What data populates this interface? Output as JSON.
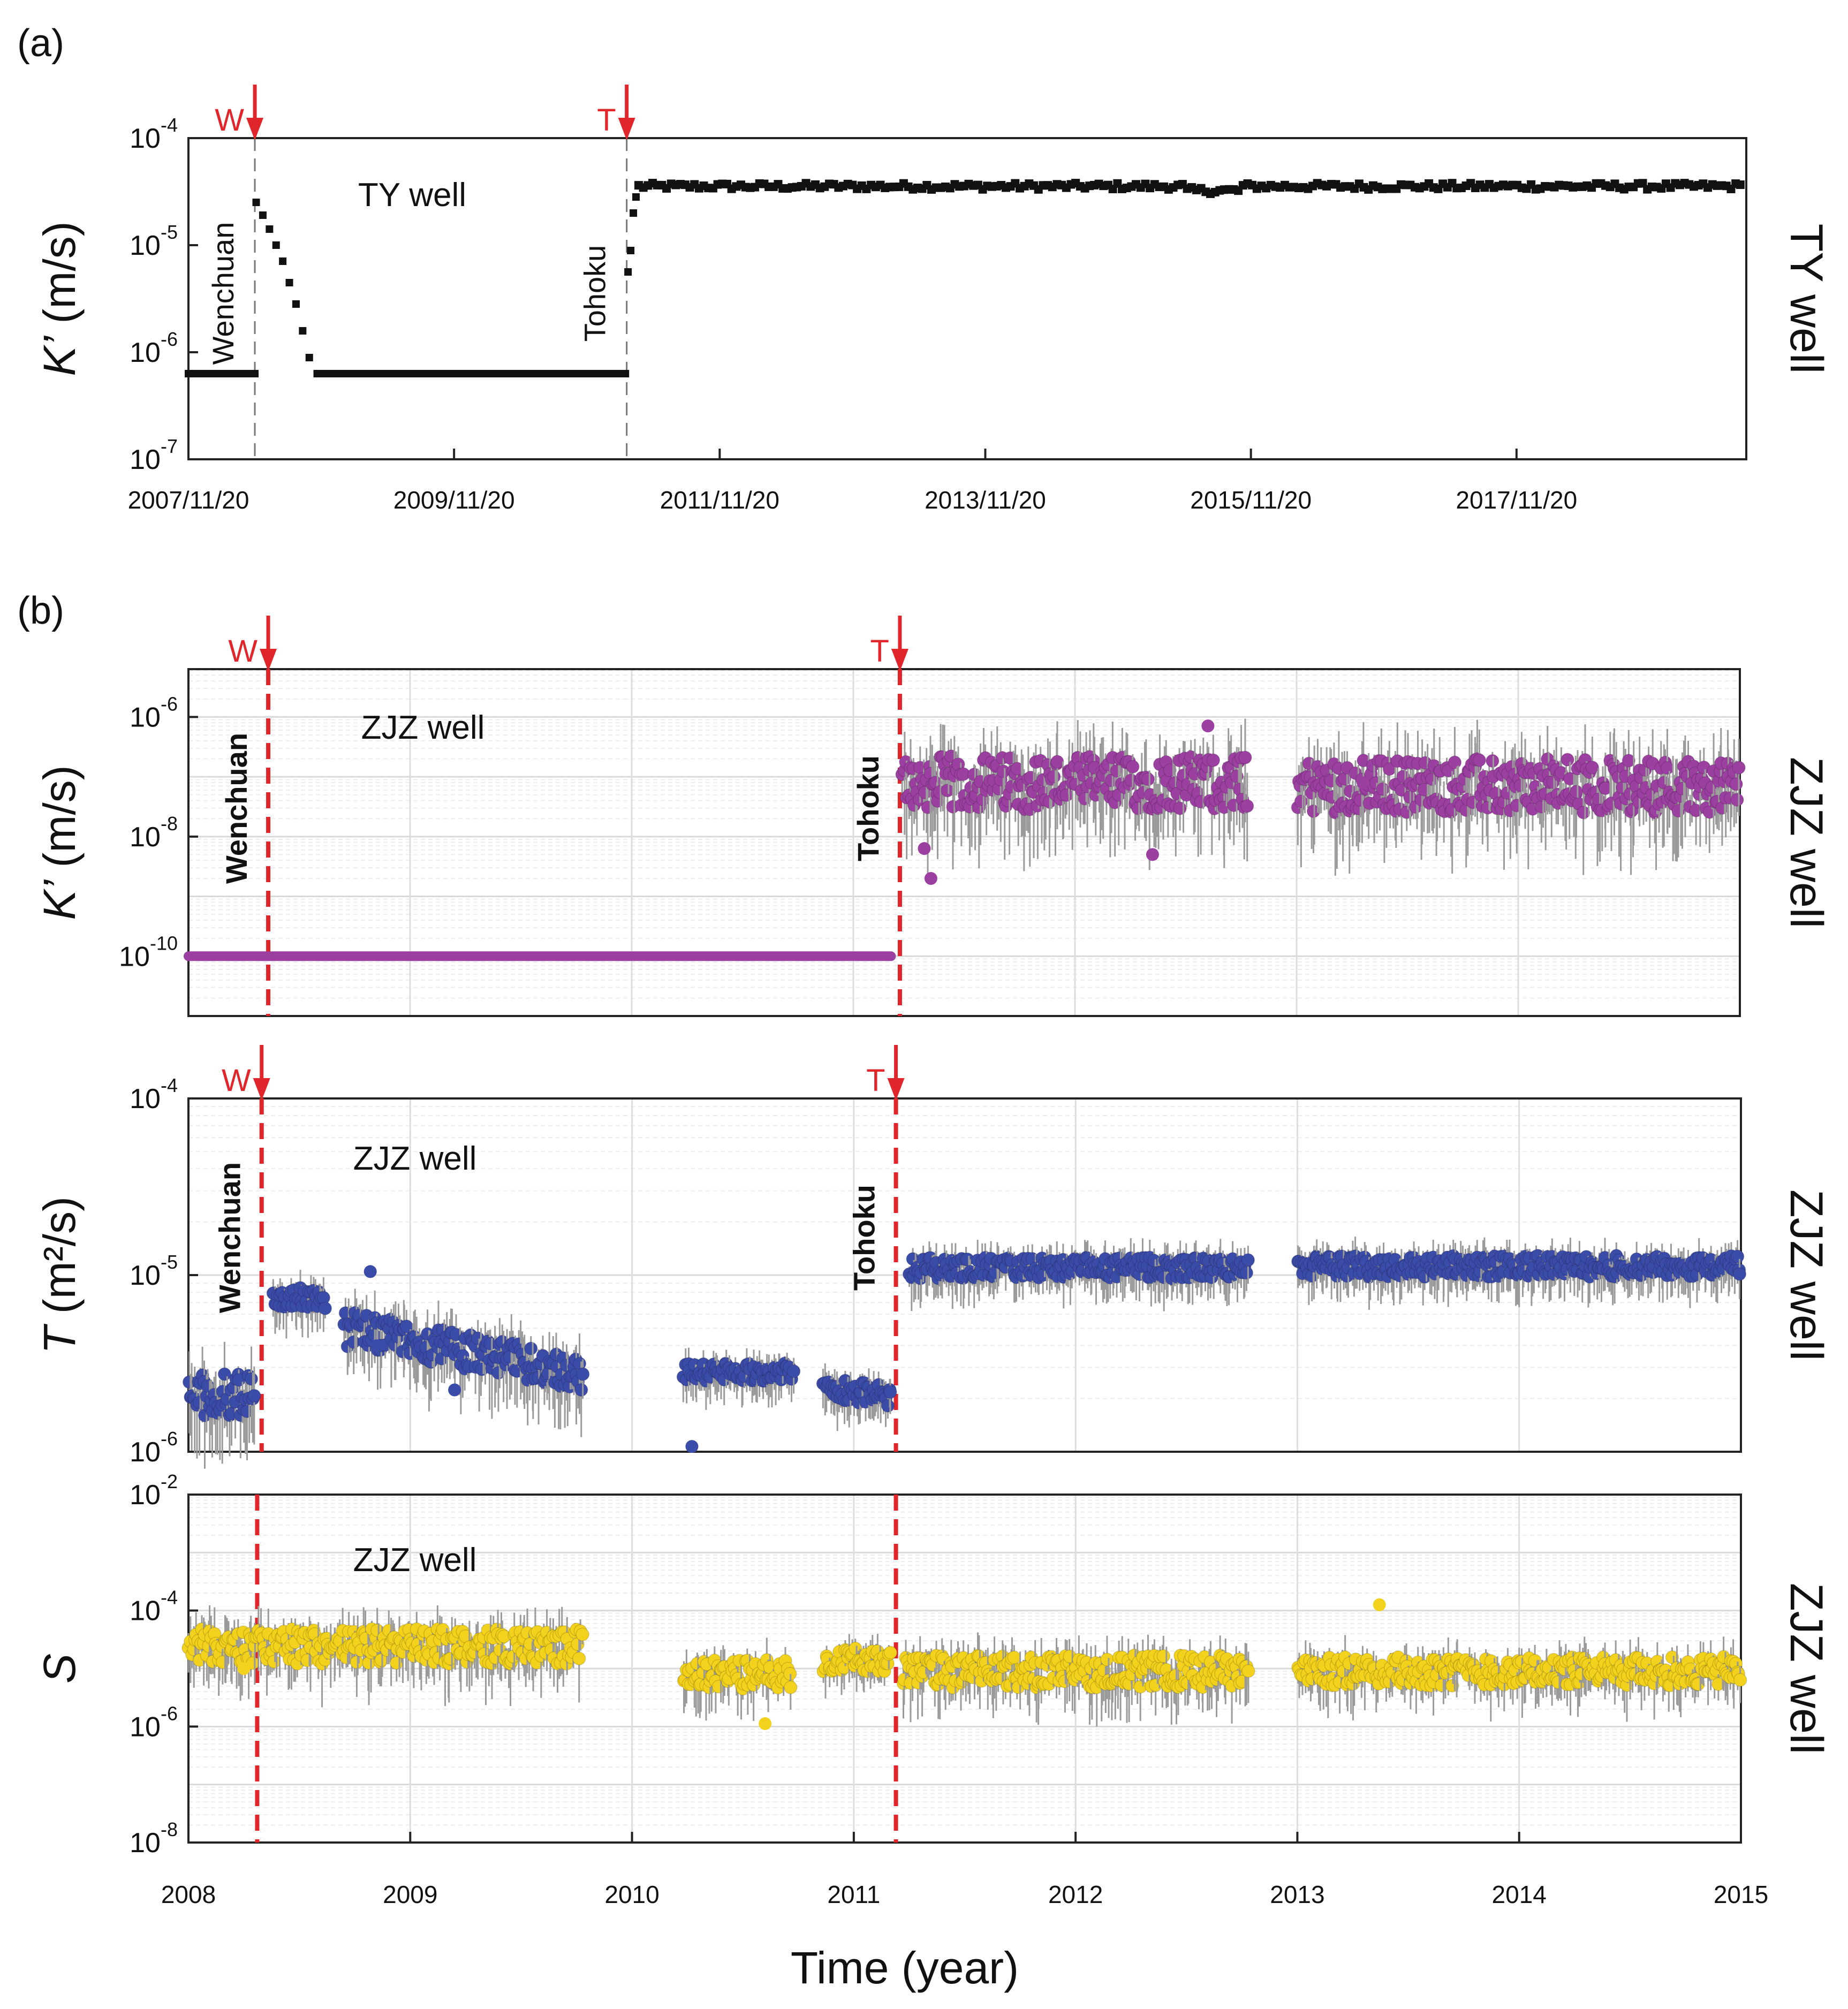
{
  "panel_a_label": "(a)",
  "panel_b_label": "(b)",
  "x_axis_title": "Time (year)",
  "colors": {
    "eq": "#e0262b",
    "ty": "#111111",
    "kzjz": "#9b3fa0",
    "t": "#3b4ba8",
    "s": "#f2d21c",
    "err": "#9a9a9a"
  },
  "chart_data": [
    {
      "id": "a",
      "type": "scatter",
      "title": "TY well",
      "side_label": "TY well",
      "ylabel_main": "K’",
      "ylabel_unit": " (m/s)",
      "yscale": "log",
      "ylim": [
        -7,
        -4
      ],
      "y_ticks": [
        {
          "base": "10",
          "exp": "-7",
          "v": -7
        },
        {
          "base": "10",
          "exp": "-6",
          "v": -6
        },
        {
          "base": "10",
          "exp": "-5",
          "v": -5
        },
        {
          "base": "10",
          "exp": "-4",
          "v": -4
        }
      ],
      "xlim": [
        2007.89,
        2019.62
      ],
      "x_ticks": [
        {
          "label": "2007/11/20",
          "v": 2007.89
        },
        {
          "label": "2009/11/20",
          "v": 2009.89
        },
        {
          "label": "2011/11/20",
          "v": 2011.89
        },
        {
          "label": "2013/11/20",
          "v": 2013.89
        },
        {
          "label": "2015/11/20",
          "v": 2015.89
        },
        {
          "label": "2017/11/20",
          "v": 2017.89
        }
      ],
      "events": [
        {
          "flag": "W",
          "name": "Wenchuan",
          "x": 2008.39
        },
        {
          "flag": "T",
          "name": "Tohoku",
          "x": 2011.19
        }
      ],
      "baseline_log": -6.2,
      "segments": [
        {
          "from": 2007.89,
          "to": 2008.39,
          "logk": -6.2
        },
        {
          "from": 2008.86,
          "to": 2011.19,
          "logk": -6.2
        }
      ],
      "decay": [
        [
          2008.4,
          -4.6
        ],
        [
          2008.45,
          -4.72
        ],
        [
          2008.5,
          -4.85
        ],
        [
          2008.55,
          -5.0
        ],
        [
          2008.6,
          -5.15
        ],
        [
          2008.65,
          -5.35
        ],
        [
          2008.7,
          -5.55
        ],
        [
          2008.75,
          -5.8
        ],
        [
          2008.8,
          -6.05
        ],
        [
          2008.86,
          -6.2
        ]
      ],
      "tohoku_jump": [
        [
          2011.2,
          -5.25
        ],
        [
          2011.22,
          -5.05
        ],
        [
          2011.24,
          -4.7
        ],
        [
          2011.26,
          -4.55
        ]
      ],
      "plateau_log": -4.45
    },
    {
      "id": "b1",
      "type": "scatter",
      "title": "ZJZ well",
      "side_label": "ZJZ well",
      "ylabel_main": "K’",
      "ylabel_unit": " (m/s)",
      "yscale": "log",
      "ylim": [
        -11,
        -5.2
      ],
      "y_ticks": [
        {
          "base": "10",
          "exp": "-10",
          "v": -10
        },
        {
          "base": "10",
          "exp": "-8",
          "v": -8
        },
        {
          "base": "10",
          "exp": "-6",
          "v": -6
        }
      ],
      "xlim": [
        2008,
        2015
      ],
      "events": [
        {
          "flag": "W",
          "name": "Wenchuan",
          "x": 2008.36
        },
        {
          "flag": "T",
          "name": "Tohoku",
          "x": 2011.21
        }
      ],
      "baseline": {
        "from": 2008,
        "to": 2011.17,
        "log": -10
      },
      "clusters": [
        {
          "from": 2011.22,
          "to": 2012.78,
          "mean": -7.1,
          "spread": 0.45
        },
        {
          "from": 2013.0,
          "to": 2015.0,
          "mean": -7.15,
          "spread": 0.45
        }
      ],
      "outliers": [
        [
          2011.32,
          -8.2
        ],
        [
          2011.35,
          -8.7
        ],
        [
          2012.35,
          -8.3
        ],
        [
          2012.6,
          -6.15
        ],
        [
          2013.3,
          -7.1
        ]
      ]
    },
    {
      "id": "b2",
      "type": "scatter",
      "title": "ZJZ well",
      "side_label": "ZJZ well",
      "ylabel_main": "T",
      "ylabel_unit": " (m²/s)",
      "yscale": "log",
      "ylim": [
        -6,
        -4
      ],
      "y_ticks": [
        {
          "base": "10",
          "exp": "-6",
          "v": -6
        },
        {
          "base": "10",
          "exp": "-5",
          "v": -5
        },
        {
          "base": "10",
          "exp": "-4",
          "v": -4
        }
      ],
      "xlim": [
        2008,
        2015
      ],
      "events": [
        {
          "flag": "W",
          "name": "Wenchuan",
          "x": 2008.33
        },
        {
          "flag": "T",
          "name": "Tohoku",
          "x": 2011.19
        }
      ],
      "clusters": [
        {
          "from": 2008.0,
          "to": 2008.3,
          "mean": -5.68,
          "spread": 0.12
        },
        {
          "from": 2008.38,
          "to": 2008.62,
          "mean": -5.13,
          "spread": 0.06
        },
        {
          "from": 2008.7,
          "to": 2009.78,
          "mean": -5.3,
          "spread": 0.1,
          "slope": -0.24
        },
        {
          "from": 2010.23,
          "to": 2010.73,
          "mean": -5.55,
          "spread": 0.05
        },
        {
          "from": 2010.86,
          "to": 2011.17,
          "mean": -5.63,
          "spread": 0.06,
          "slope": -0.2
        },
        {
          "from": 2011.25,
          "to": 2012.78,
          "mean": -4.96,
          "spread": 0.06
        },
        {
          "from": 2013.0,
          "to": 2015.0,
          "mean": -4.95,
          "spread": 0.06
        }
      ],
      "outliers": [
        [
          2008.82,
          -4.98
        ],
        [
          2010.27,
          -5.97
        ],
        [
          2008.85,
          -5.4
        ],
        [
          2009.2,
          -5.65
        ]
      ]
    },
    {
      "id": "b3",
      "type": "scatter",
      "title": "ZJZ well",
      "side_label": "ZJZ well",
      "ylabel_main": "S",
      "ylabel_unit": "",
      "yscale": "log",
      "ylim": [
        -8,
        -2
      ],
      "y_ticks": [
        {
          "base": "10",
          "exp": "-8",
          "v": -8
        },
        {
          "base": "10",
          "exp": "-6",
          "v": -6
        },
        {
          "base": "10",
          "exp": "-4",
          "v": -4
        },
        {
          "base": "10",
          "exp": "-2",
          "v": -2
        }
      ],
      "xlim": [
        2008,
        2015
      ],
      "x_ticks": [
        {
          "label": "2008",
          "v": 2008
        },
        {
          "label": "2009",
          "v": 2009
        },
        {
          "label": "2010",
          "v": 2010
        },
        {
          "label": "2011",
          "v": 2011
        },
        {
          "label": "2012",
          "v": 2012
        },
        {
          "label": "2013",
          "v": 2013
        },
        {
          "label": "2014",
          "v": 2014
        },
        {
          "label": "2015",
          "v": 2015
        }
      ],
      "events": [
        {
          "flag": "",
          "name": "",
          "x": 2008.31
        },
        {
          "flag": "",
          "name": "",
          "x": 2011.19
        }
      ],
      "clusters": [
        {
          "from": 2008.0,
          "to": 2009.78,
          "mean": -4.62,
          "spread": 0.3
        },
        {
          "from": 2010.23,
          "to": 2010.72,
          "mean": -5.1,
          "spread": 0.25
        },
        {
          "from": 2010.86,
          "to": 2011.17,
          "mean": -4.85,
          "spread": 0.2
        },
        {
          "from": 2011.22,
          "to": 2012.78,
          "mean": -5.05,
          "spread": 0.28
        },
        {
          "from": 2013.0,
          "to": 2015.0,
          "mean": -5.05,
          "spread": 0.25
        }
      ],
      "outliers": [
        [
          2013.37,
          -3.9
        ],
        [
          2010.6,
          -5.95
        ],
        [
          2008.25,
          -5.0
        ]
      ]
    }
  ]
}
